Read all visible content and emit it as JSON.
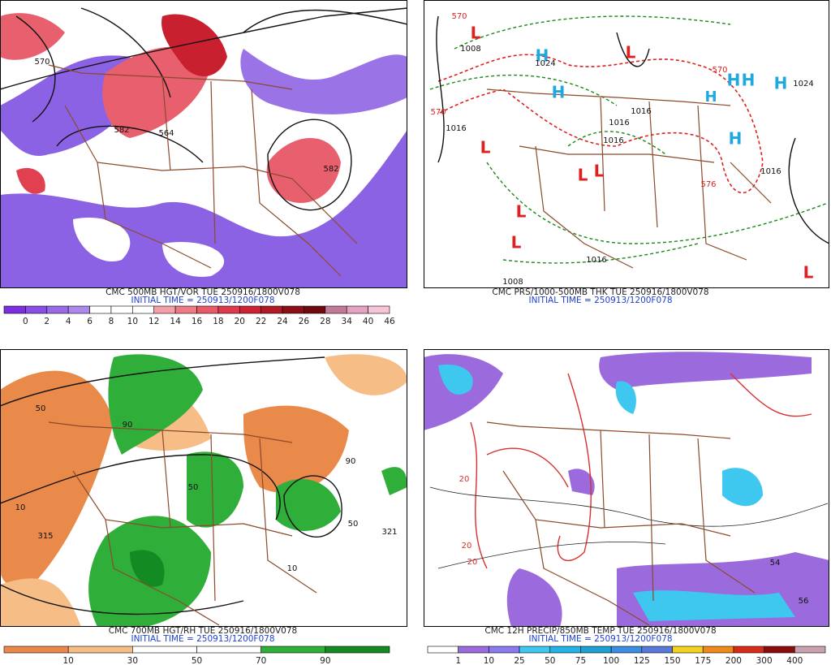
{
  "panels": [
    {
      "caption": "CMC 500MB HGT/VOR TUE 250916/1800V078",
      "initial_time": "INITIAL TIME = 250913/1200F078",
      "colorbar": {
        "labels": [
          "0",
          "2",
          "4",
          "6",
          "8",
          "10",
          "12",
          "14",
          "16",
          "18",
          "20",
          "22",
          "24",
          "26",
          "28",
          "34",
          "40",
          "46"
        ],
        "colors": [
          "#7b2fe0",
          "#8a4ee6",
          "#9a69e8",
          "#ad88ec",
          "#ffffff",
          "#ffffff",
          "#ffffff",
          "#f3a0a8",
          "#ee7a86",
          "#e85a68",
          "#df3a4c",
          "#cc2233",
          "#b01a26",
          "#8c0f18",
          "#6e0a10",
          "#c37a9a",
          "#e6a2c2",
          "#f6c6d8"
        ]
      },
      "map_labels": [
        "570",
        "564",
        "582",
        "582"
      ]
    },
    {
      "caption": "CMC PRS/1000-500MB THK TUE 250916/1800V078",
      "initial_time": "INITIAL TIME = 250913/1200F078",
      "map_labels": [
        "L",
        "1008",
        "H",
        "1024",
        "L",
        "H",
        "570",
        "H",
        "H",
        "H",
        "1024",
        "H",
        "570",
        "1016",
        "1016",
        "1016",
        "1016",
        "L",
        "H",
        "L",
        "L",
        "576",
        "1016",
        "L",
        "L",
        "1016",
        "1008",
        "L",
        "570"
      ]
    },
    {
      "caption": "CMC 700MB HGT/RH TUE 250916/1800V078",
      "initial_time": "INITIAL TIME = 250913/1200F078",
      "colorbar": {
        "labels": [
          "10",
          "30",
          "50",
          "70",
          "90"
        ],
        "colors": [
          "#ea8a4a",
          "#f7bd86",
          "#ffffff",
          "#ffffff",
          "#2fae3a",
          "#138a22"
        ]
      },
      "map_labels": [
        "315",
        "10",
        "50",
        "90",
        "50",
        "90",
        "50",
        "321",
        "10"
      ]
    },
    {
      "caption": "CMC 12H PRECIP/850MB TEMP TUE 250916/1800V078",
      "initial_time": "INITIAL TIME = 250913/1200F078",
      "colorbar": {
        "labels": [
          "1",
          "10",
          "25",
          "50",
          "75",
          "100",
          "125",
          "150",
          "175",
          "200",
          "300",
          "400"
        ],
        "colors": [
          "#ffffff",
          "#9b6bdd",
          "#8a7cf0",
          "#3ec8f0",
          "#22b4e6",
          "#1ea0d2",
          "#3c8ce0",
          "#5a78d8",
          "#f2d21e",
          "#f08a1a",
          "#d82a1a",
          "#8c0c0c",
          "#c8a0b0"
        ]
      },
      "map_labels": [
        "20",
        "20",
        "20",
        "54",
        "56"
      ]
    }
  ]
}
